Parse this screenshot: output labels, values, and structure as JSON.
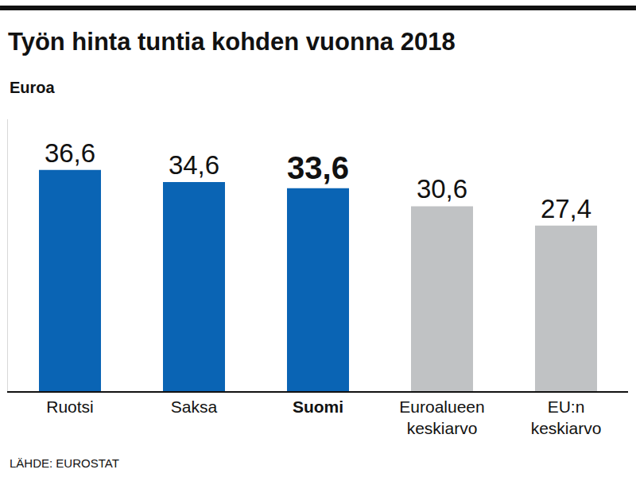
{
  "chart_data": {
    "type": "bar",
    "title": "Työn hinta tuntia kohden vuonna 2018",
    "subtitle": "Euroa",
    "source": "LÄHDE: EUROSTAT",
    "categories": [
      "Ruotsi",
      "Saksa",
      "Suomi",
      "Euroalueen keskiarvo",
      "EU:n keskiarvo"
    ],
    "values": [
      36.6,
      34.6,
      33.6,
      30.6,
      27.4
    ],
    "value_labels": [
      "36,6",
      "34,6",
      "33,6",
      "30,6",
      "27,4"
    ],
    "colors": [
      "#0a64b4",
      "#0a64b4",
      "#0a64b4",
      "#c0c2c4",
      "#c0c2c4"
    ],
    "ylim": [
      0,
      45
    ],
    "grid": false,
    "data_labels": true,
    "tick_labels": "x"
  }
}
